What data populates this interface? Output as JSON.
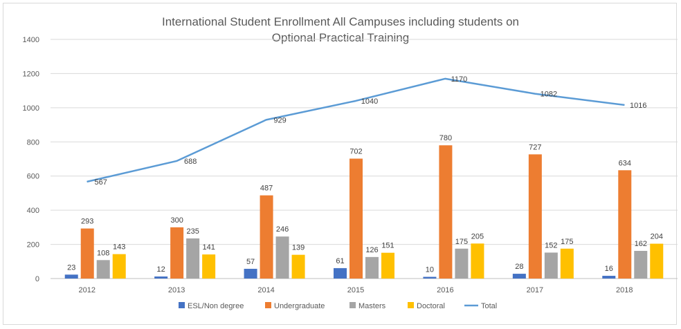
{
  "chart_data": {
    "type": "bar",
    "title_lines": [
      "International Student Enrollment All Campuses including students on",
      "Optional Practical Training"
    ],
    "categories": [
      "2012",
      "2013",
      "2014",
      "2015",
      "2016",
      "2017",
      "2018"
    ],
    "ylim": [
      0,
      1400
    ],
    "yticks": [
      0,
      200,
      400,
      600,
      800,
      1000,
      1200,
      1400
    ],
    "grid": true,
    "legend_position": "bottom",
    "series": [
      {
        "name": "ESL/Non degree",
        "kind": "bar",
        "color": "#4472c4",
        "values": [
          23,
          12,
          57,
          61,
          10,
          28,
          16
        ]
      },
      {
        "name": "Undergraduate",
        "kind": "bar",
        "color": "#ed7d31",
        "values": [
          293,
          300,
          487,
          702,
          780,
          727,
          634
        ]
      },
      {
        "name": "Masters",
        "kind": "bar",
        "color": "#a5a5a5",
        "values": [
          108,
          235,
          246,
          126,
          175,
          152,
          162
        ]
      },
      {
        "name": "Doctoral",
        "kind": "bar",
        "color": "#ffc000",
        "values": [
          143,
          141,
          139,
          151,
          205,
          175,
          204
        ]
      },
      {
        "name": "Total",
        "kind": "line",
        "color": "#5b9bd5",
        "values": [
          567,
          688,
          929,
          1040,
          1170,
          1082,
          1016
        ]
      }
    ]
  }
}
